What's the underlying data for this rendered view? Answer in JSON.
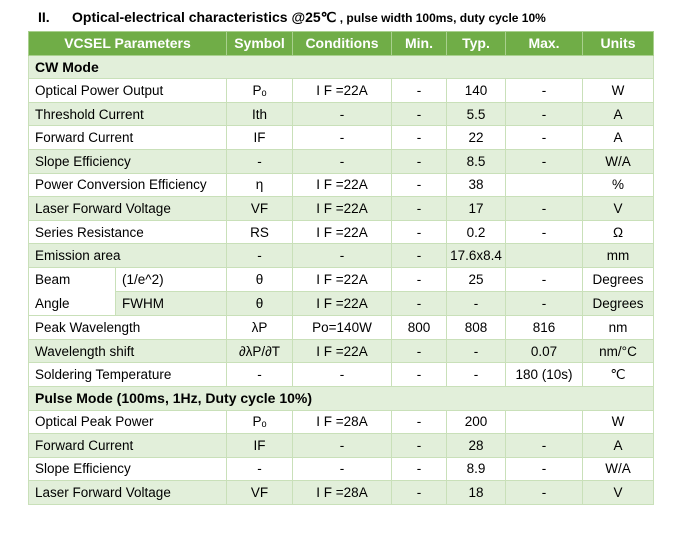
{
  "title": {
    "number": "II.",
    "main": "Optical-electrical characteristics @25℃",
    "sub": " , pulse width 100ms, duty cycle 10%"
  },
  "columns": [
    "VCSEL Parameters",
    "Symbol",
    "Conditions",
    "Min.",
    "Typ.",
    "Max.",
    "Units"
  ],
  "colors": {
    "header": "#70ad47",
    "band": "#e2efda",
    "border": "#c9e0b9"
  },
  "sections": [
    {
      "label": "CW Mode",
      "rows": [
        [
          "Optical Power Output",
          "Pₒ",
          "I F =22A",
          "-",
          "140",
          "-",
          "W"
        ],
        [
          "Threshold Current",
          "Ith",
          "-",
          "-",
          "5.5",
          "-",
          "A"
        ],
        [
          "Forward Current",
          "IF",
          "-",
          "-",
          "22",
          "-",
          "A"
        ],
        [
          "Slope Efficiency",
          "-",
          "-",
          "-",
          "8.5",
          "-",
          "W/A"
        ],
        [
          "Power Conversion Efficiency",
          "η",
          "I F =22A",
          "-",
          "38",
          "",
          "%"
        ],
        [
          "Laser Forward Voltage",
          "VF",
          "I F =22A",
          "-",
          "17",
          "-",
          "V"
        ],
        [
          "Series Resistance",
          "RS",
          "I F =22A",
          "-",
          "0.2",
          "-",
          "Ω"
        ],
        [
          "Emission area",
          "-",
          "-",
          "-",
          "17.6x8.4",
          "",
          "mm"
        ]
      ],
      "beam": {
        "labels": [
          "Beam",
          "Angle"
        ],
        "rows": [
          [
            "(1/e^2)",
            "θ",
            "I F =22A",
            "-",
            "25",
            "-",
            "Degrees"
          ],
          [
            "FWHM",
            "θ",
            "I F =22A",
            "-",
            "-",
            "-",
            "Degrees"
          ]
        ]
      },
      "rows2": [
        [
          "Peak Wavelength",
          "λP",
          "Po=140W",
          "800",
          "808",
          "816",
          "nm"
        ],
        [
          "Wavelength shift",
          "∂λP/∂T",
          "I F =22A",
          "-",
          "-",
          "0.07",
          "nm/°C"
        ],
        [
          "Soldering Temperature",
          "-",
          "-",
          "-",
          "-",
          "180 (10s)",
          "℃"
        ]
      ]
    },
    {
      "label": "Pulse Mode (100ms, 1Hz, Duty cycle 10%)",
      "rows": [
        [
          "Optical Peak Power",
          "Pₒ",
          "I F =28A",
          "-",
          "200",
          "",
          "W"
        ],
        [
          "Forward Current",
          "IF",
          "-",
          "-",
          "28",
          "-",
          "A"
        ],
        [
          "Slope Efficiency",
          "-",
          "-",
          "-",
          "8.9",
          "-",
          "W/A"
        ],
        [
          "Laser Forward Voltage",
          "VF",
          "I F =28A",
          "-",
          "18",
          "-",
          "V"
        ]
      ]
    }
  ]
}
